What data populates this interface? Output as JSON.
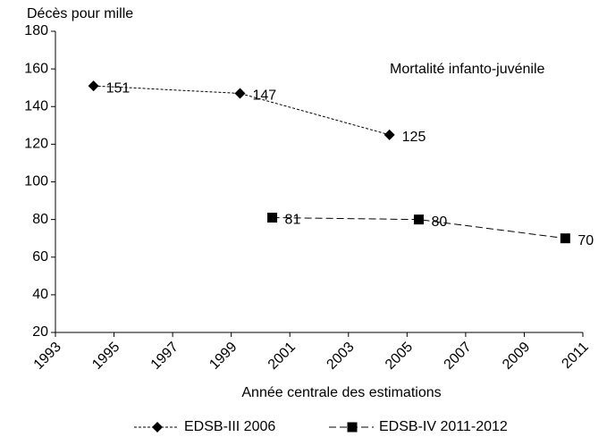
{
  "chart_data": {
    "type": "line",
    "y_label": "Décès pour mille",
    "x_label": "Année centrale des estimations",
    "annotation": "Mortalité infanto-juvénile",
    "xlim": [
      1993,
      2011
    ],
    "xticks": [
      1993,
      1995,
      1997,
      1999,
      2001,
      2003,
      2005,
      2007,
      2009,
      2011
    ],
    "ylim": [
      20,
      180
    ],
    "yticks": [
      20,
      40,
      60,
      80,
      100,
      120,
      140,
      160,
      180
    ],
    "grid": false,
    "legend": "bottom",
    "series": [
      {
        "name": "EDSB-III 2006",
        "color": "#000000",
        "marker": "diamond",
        "dash": "3,2",
        "x": [
          1994.3,
          1999.3,
          2004.4
        ],
        "values": [
          151,
          147,
          125
        ]
      },
      {
        "name": "EDSB-IV 2011-2012",
        "color": "#000000",
        "marker": "square",
        "dash": "8,4",
        "x": [
          2000.4,
          2005.4,
          2010.4
        ],
        "values": [
          81,
          80,
          70
        ]
      }
    ]
  }
}
